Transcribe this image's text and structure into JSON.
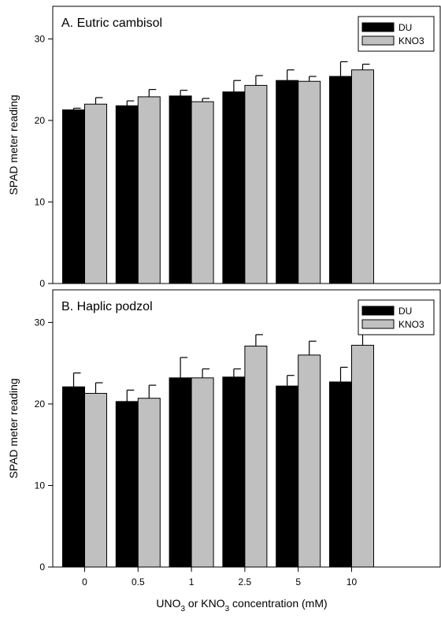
{
  "chart_data": [
    {
      "type": "bar",
      "title": "A. Eutric cambisol",
      "ylabel": "SPAD meter reading",
      "xlabel": "",
      "ylim": [
        0,
        34
      ],
      "yticks": [
        "0",
        "10",
        "20",
        "30"
      ],
      "categories": [
        "0",
        "0.5",
        "1",
        "2.5",
        "5",
        "10"
      ],
      "legend_position": "top-right",
      "series": [
        {
          "name": "DU",
          "color": "#000000",
          "values": [
            21.3,
            21.8,
            23.0,
            23.5,
            24.9,
            25.4
          ],
          "errors": [
            0.2,
            0.6,
            0.7,
            1.4,
            1.3,
            1.8
          ]
        },
        {
          "name": "KNO3",
          "color": "#c0c0c0",
          "values": [
            22.0,
            22.9,
            22.3,
            24.3,
            24.8,
            26.2
          ],
          "errors": [
            0.8,
            0.9,
            0.4,
            1.2,
            0.6,
            0.7
          ]
        }
      ]
    },
    {
      "type": "bar",
      "title": "B. Haplic podzol",
      "ylabel": "SPAD meter reading",
      "xlabel": "UNO3 or KNO3 concentration (mM)",
      "ylim": [
        0,
        34
      ],
      "yticks": [
        "0",
        "10",
        "20",
        "30"
      ],
      "categories": [
        "0",
        "0.5",
        "1",
        "2.5",
        "5",
        "10"
      ],
      "legend_position": "top-right",
      "series": [
        {
          "name": "DU",
          "color": "#000000",
          "values": [
            22.1,
            20.3,
            23.2,
            23.3,
            22.2,
            22.7
          ],
          "errors": [
            1.7,
            1.4,
            2.5,
            1.0,
            1.3,
            1.8
          ]
        },
        {
          "name": "KNO3",
          "color": "#c0c0c0",
          "values": [
            21.3,
            20.7,
            23.2,
            27.1,
            26.0,
            27.2
          ],
          "errors": [
            1.3,
            1.6,
            1.1,
            1.4,
            1.7,
            1.9
          ]
        }
      ]
    }
  ],
  "xlabel_parts": {
    "a": "UNO",
    "sub1": "3",
    "b": " or KNO",
    "sub2": "3",
    "c": " concentration (mM)"
  }
}
